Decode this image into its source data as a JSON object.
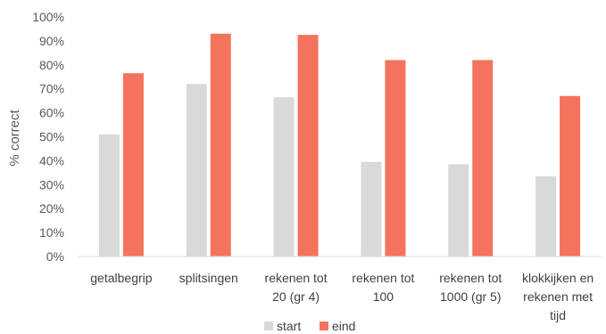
{
  "chart_data": {
    "type": "bar",
    "title": "",
    "xlabel": "",
    "ylabel": "% correct",
    "ylim": [
      0,
      100
    ],
    "yticks": [
      "0%",
      "10%",
      "20%",
      "30%",
      "40%",
      "50%",
      "60%",
      "70%",
      "80%",
      "90%",
      "100%"
    ],
    "grid": false,
    "legend": "bottom",
    "categories": [
      [
        "getalbegrip"
      ],
      [
        "splitsingen"
      ],
      [
        "rekenen tot",
        "20 (gr 4)"
      ],
      [
        "rekenen tot",
        "100"
      ],
      [
        "rekenen tot",
        "1000 (gr 5)"
      ],
      [
        "klokkijken en",
        "rekenen met",
        "tijd"
      ]
    ],
    "series": [
      {
        "name": "start",
        "color": "#d9d9d9",
        "values": [
          51,
          72,
          66.5,
          39.5,
          38.5,
          33.5
        ]
      },
      {
        "name": "eind",
        "color": "#f4735c",
        "values": [
          76.5,
          93,
          92.5,
          82,
          82,
          67
        ]
      }
    ]
  }
}
